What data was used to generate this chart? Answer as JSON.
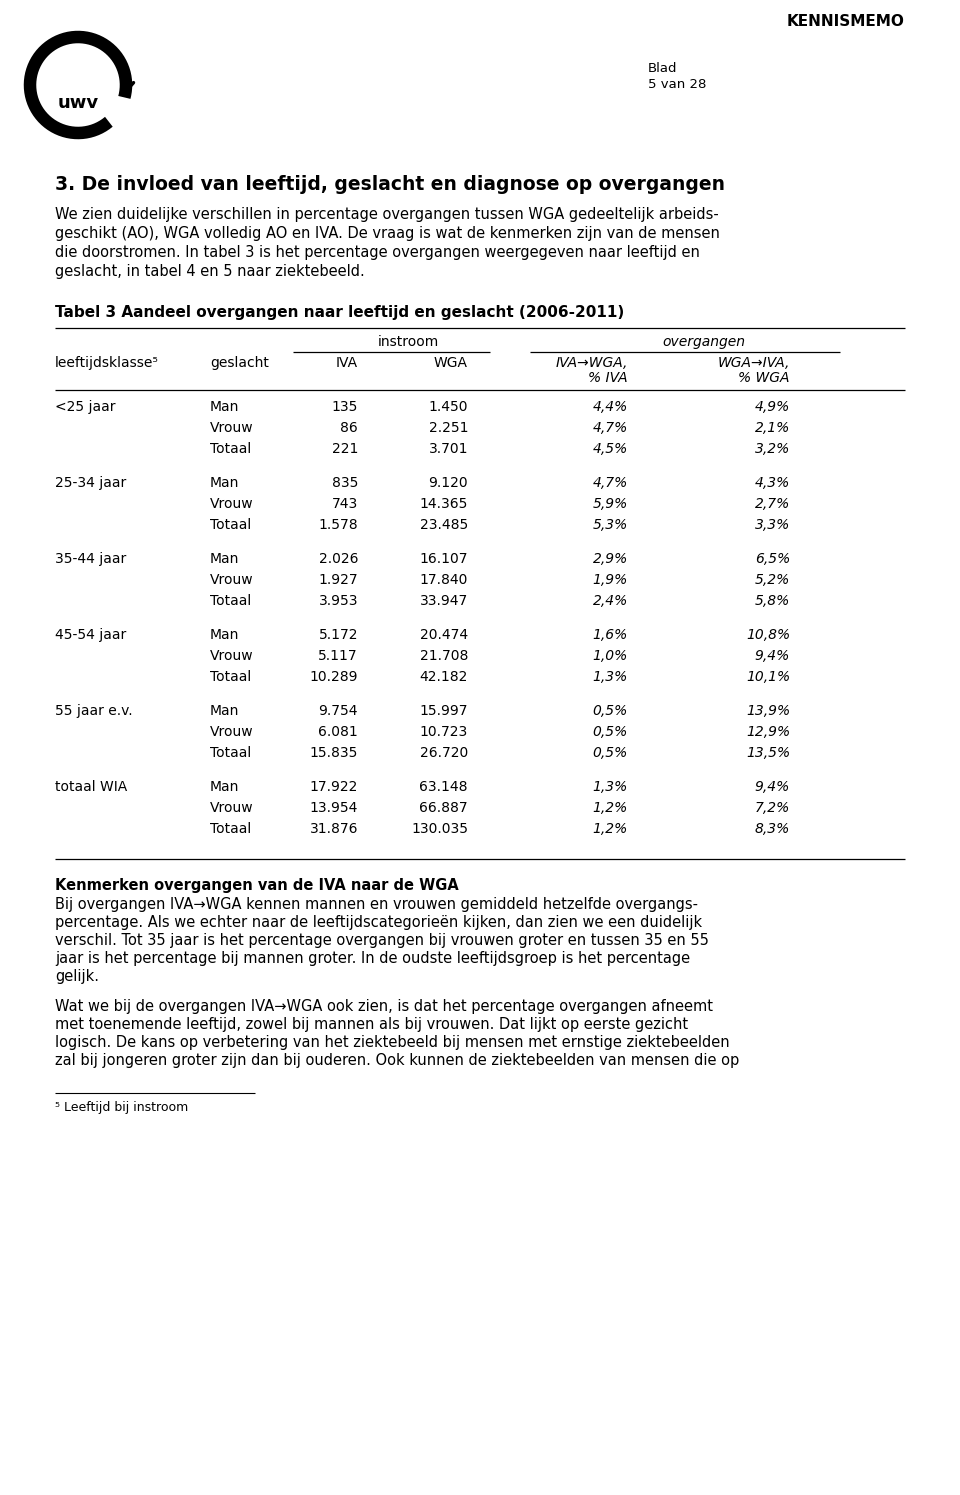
{
  "page_header": "KENNISMEMO",
  "blad_label": "Blad",
  "blad_value": "5 van 28",
  "section_title": "3. De invloed van leeftijd, geslacht en diagnose op overgangen",
  "section_body_lines": [
    "We zien duidelijke verschillen in percentage overgangen tussen WGA gedeeltelijk arbeids-",
    "geschikt (AO), WGA volledig AO en IVA. De vraag is wat de kenmerken zijn van de mensen",
    "die doorstromen. In tabel 3 is het percentage overgangen weergegeven naar leeftijd en",
    "geslacht, in tabel 4 en 5 naar ziektebeeld."
  ],
  "table_title": "Tabel 3 Aandeel overgangen naar leeftijd en geslacht (2006-2011)",
  "rows": [
    [
      "<25 jaar",
      "Man",
      "135",
      "1.450",
      "4,4%",
      "4,9%"
    ],
    [
      "",
      "Vrouw",
      "86",
      "2.251",
      "4,7%",
      "2,1%"
    ],
    [
      "",
      "Totaal",
      "221",
      "3.701",
      "4,5%",
      "3,2%"
    ],
    [
      "25-34 jaar",
      "Man",
      "835",
      "9.120",
      "4,7%",
      "4,3%"
    ],
    [
      "",
      "Vrouw",
      "743",
      "14.365",
      "5,9%",
      "2,7%"
    ],
    [
      "",
      "Totaal",
      "1.578",
      "23.485",
      "5,3%",
      "3,3%"
    ],
    [
      "35-44 jaar",
      "Man",
      "2.026",
      "16.107",
      "2,9%",
      "6,5%"
    ],
    [
      "",
      "Vrouw",
      "1.927",
      "17.840",
      "1,9%",
      "5,2%"
    ],
    [
      "",
      "Totaal",
      "3.953",
      "33.947",
      "2,4%",
      "5,8%"
    ],
    [
      "45-54 jaar",
      "Man",
      "5.172",
      "20.474",
      "1,6%",
      "10,8%"
    ],
    [
      "",
      "Vrouw",
      "5.117",
      "21.708",
      "1,0%",
      "9,4%"
    ],
    [
      "",
      "Totaal",
      "10.289",
      "42.182",
      "1,3%",
      "10,1%"
    ],
    [
      "55 jaar e.v.",
      "Man",
      "9.754",
      "15.997",
      "0,5%",
      "13,9%"
    ],
    [
      "",
      "Vrouw",
      "6.081",
      "10.723",
      "0,5%",
      "12,9%"
    ],
    [
      "",
      "Totaal",
      "15.835",
      "26.720",
      "0,5%",
      "13,5%"
    ],
    [
      "totaal WIA",
      "Man",
      "17.922",
      "63.148",
      "1,3%",
      "9,4%"
    ],
    [
      "",
      "Vrouw",
      "13.954",
      "66.887",
      "1,2%",
      "7,2%"
    ],
    [
      "",
      "Totaal",
      "31.876",
      "130.035",
      "1,2%",
      "8,3%"
    ]
  ],
  "kenmerken_title": "Kenmerken overgangen van de IVA naar de WGA",
  "kenmerken_body_lines": [
    "Bij overgangen IVA→WGA kennen mannen en vrouwen gemiddeld hetzelfde overgangs-",
    "percentage. Als we echter naar de leeftijdscategorieën kijken, dan zien we een duidelijk",
    "verschil. Tot 35 jaar is het percentage overgangen bij vrouwen groter en tussen 35 en 55",
    "jaar is het percentage bij mannen groter. In de oudste leeftijdsgroep is het percentage",
    "gelijk."
  ],
  "kenmerken_body2_lines": [
    "Wat we bij de overgangen IVA→WGA ook zien, is dat het percentage overgangen afneemt",
    "met toenemende leeftijd, zowel bij mannen als bij vrouwen. Dat lijkt op eerste gezicht",
    "logisch. De kans op verbetering van het ziektebeeld bij mensen met ernstige ziektebeelden",
    "zal bij jongeren groter zijn dan bij ouderen. Ook kunnen de ziektebeelden van mensen die op"
  ],
  "footnote": "⁵ Leeftijd bij instroom",
  "bg_color": "#ffffff"
}
